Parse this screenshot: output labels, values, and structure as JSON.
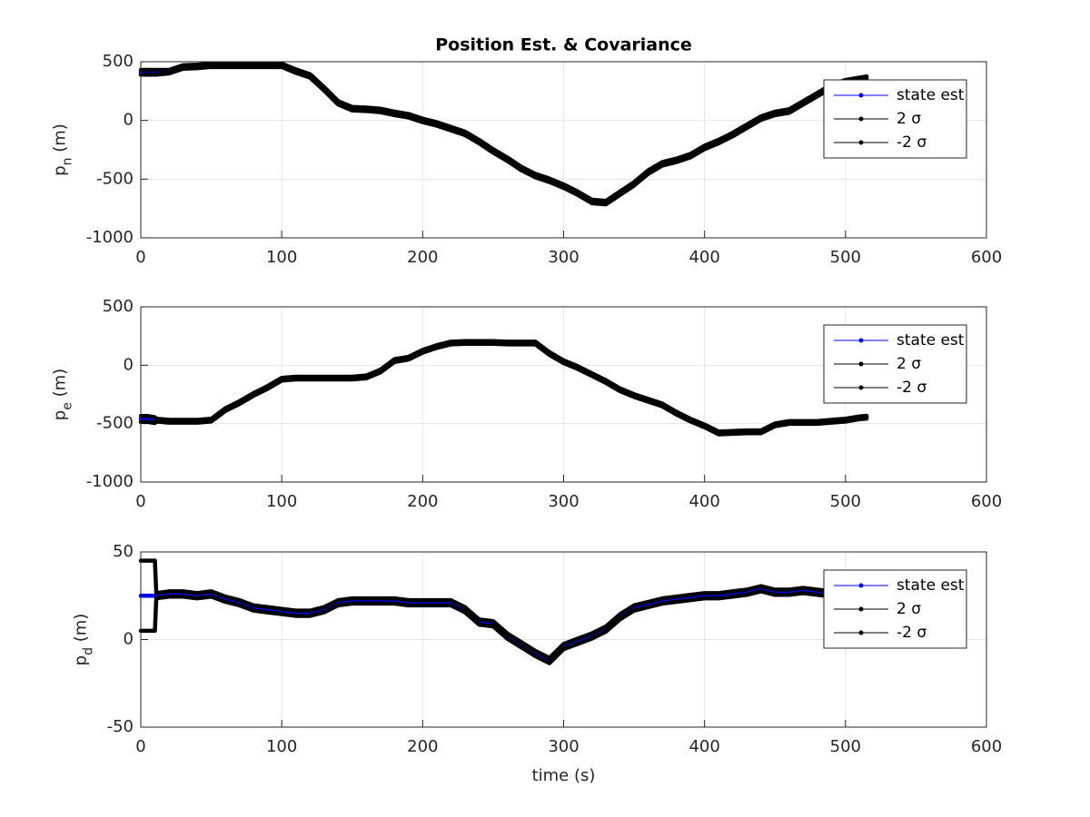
{
  "chart_data": [
    {
      "type": "line",
      "title": "Position Est. & Covariance",
      "ylabel": "p_n (m)",
      "x": [
        0,
        5,
        10,
        11,
        20,
        30,
        40,
        50,
        60,
        70,
        80,
        90,
        100,
        110,
        120,
        130,
        140,
        150,
        160,
        170,
        180,
        190,
        200,
        210,
        220,
        230,
        240,
        250,
        260,
        270,
        280,
        290,
        300,
        310,
        320,
        330,
        340,
        350,
        360,
        370,
        380,
        390,
        400,
        410,
        420,
        430,
        440,
        450,
        460,
        470,
        480,
        490,
        500,
        510,
        515
      ],
      "series": [
        {
          "name": "state est",
          "color": "#0000ff",
          "values": [
            410,
            410,
            410,
            410,
            415,
            455,
            460,
            470,
            470,
            470,
            470,
            470,
            470,
            420,
            380,
            270,
            150,
            100,
            95,
            85,
            60,
            40,
            0,
            -30,
            -70,
            -110,
            -180,
            -260,
            -330,
            -410,
            -470,
            -510,
            -560,
            -620,
            -690,
            -700,
            -620,
            -540,
            -440,
            -370,
            -340,
            -300,
            -230,
            -180,
            -120,
            -50,
            20,
            60,
            80,
            150,
            220,
            290,
            330,
            350,
            360
          ]
        },
        {
          "name": "2 σ",
          "color": "#000000",
          "values": [
            430,
            430,
            430,
            430,
            430,
            470,
            475,
            485,
            485,
            485,
            485,
            485,
            485,
            435,
            395,
            285,
            165,
            115,
            110,
            100,
            75,
            55,
            15,
            -15,
            -55,
            -95,
            -165,
            -245,
            -315,
            -395,
            -455,
            -495,
            -545,
            -605,
            -675,
            -685,
            -605,
            -525,
            -425,
            -355,
            -325,
            -285,
            -215,
            -165,
            -105,
            -35,
            35,
            75,
            95,
            165,
            235,
            305,
            345,
            365,
            375
          ]
        },
        {
          "name": "-2 σ",
          "color": "#000000",
          "values": [
            390,
            390,
            390,
            390,
            400,
            440,
            445,
            455,
            455,
            455,
            455,
            455,
            455,
            405,
            365,
            255,
            135,
            85,
            80,
            70,
            45,
            25,
            -15,
            -45,
            -85,
            -125,
            -195,
            -275,
            -345,
            -425,
            -485,
            -525,
            -575,
            -635,
            -705,
            -715,
            -635,
            -555,
            -455,
            -385,
            -355,
            -315,
            -245,
            -195,
            -135,
            -65,
            5,
            45,
            65,
            135,
            205,
            275,
            315,
            335,
            345
          ]
        }
      ],
      "xlim": [
        0,
        600
      ],
      "xticks": [
        0,
        100,
        200,
        300,
        400,
        500,
        600
      ],
      "ylim": [
        -1000,
        500
      ],
      "yticks": [
        -1000,
        -500,
        0,
        500
      ],
      "grid": true,
      "legend": "northeast"
    },
    {
      "type": "line",
      "ylabel": "p_e (m)",
      "x": [
        0,
        5,
        10,
        11,
        20,
        30,
        40,
        50,
        60,
        70,
        80,
        90,
        100,
        110,
        120,
        130,
        140,
        150,
        160,
        170,
        180,
        190,
        200,
        210,
        220,
        230,
        240,
        250,
        260,
        270,
        280,
        290,
        300,
        310,
        320,
        330,
        340,
        350,
        360,
        370,
        380,
        390,
        400,
        410,
        420,
        430,
        440,
        450,
        460,
        470,
        480,
        490,
        500,
        510,
        515
      ],
      "series": [
        {
          "name": "state est",
          "color": "#0000ff",
          "values": [
            -460,
            -460,
            -470,
            -470,
            -480,
            -480,
            -480,
            -470,
            -380,
            -320,
            -250,
            -190,
            -120,
            -110,
            -110,
            -110,
            -110,
            -110,
            -100,
            -50,
            40,
            60,
            120,
            160,
            190,
            195,
            195,
            195,
            190,
            190,
            190,
            100,
            30,
            -20,
            -80,
            -140,
            -210,
            -260,
            -300,
            -340,
            -410,
            -470,
            -520,
            -580,
            -575,
            -570,
            -570,
            -510,
            -490,
            -490,
            -490,
            -480,
            -470,
            -450,
            -445
          ]
        },
        {
          "name": "2 σ",
          "color": "#000000",
          "values": [
            -435,
            -435,
            -445,
            -458,
            -468,
            -468,
            -468,
            -458,
            -368,
            -308,
            -238,
            -178,
            -108,
            -98,
            -98,
            -98,
            -98,
            -98,
            -88,
            -38,
            52,
            72,
            132,
            172,
            202,
            207,
            207,
            207,
            202,
            202,
            202,
            112,
            42,
            -8,
            -68,
            -128,
            -198,
            -248,
            -288,
            -328,
            -398,
            -458,
            -508,
            -568,
            -563,
            -558,
            -558,
            -498,
            -478,
            -478,
            -478,
            -468,
            -458,
            -438,
            -433
          ]
        },
        {
          "name": "-2 σ",
          "color": "#000000",
          "values": [
            -485,
            -485,
            -495,
            -482,
            -492,
            -492,
            -492,
            -482,
            -392,
            -332,
            -262,
            -202,
            -132,
            -122,
            -122,
            -122,
            -122,
            -122,
            -112,
            -62,
            28,
            48,
            108,
            148,
            178,
            183,
            183,
            183,
            178,
            178,
            178,
            88,
            18,
            -32,
            -92,
            -152,
            -222,
            -272,
            -312,
            -352,
            -422,
            -482,
            -532,
            -592,
            -587,
            -582,
            -582,
            -522,
            -502,
            -502,
            -502,
            -492,
            -482,
            -462,
            -457
          ]
        }
      ],
      "xlim": [
        0,
        600
      ],
      "xticks": [
        0,
        100,
        200,
        300,
        400,
        500,
        600
      ],
      "ylim": [
        -1000,
        500
      ],
      "yticks": [
        -1000,
        -500,
        0,
        500
      ],
      "grid": true,
      "legend": "northeast"
    },
    {
      "type": "line",
      "ylabel": "p_d (m)",
      "xlabel": "time (s)",
      "x": [
        0,
        5,
        10,
        11,
        20,
        30,
        40,
        50,
        60,
        70,
        80,
        90,
        100,
        110,
        120,
        130,
        140,
        150,
        160,
        170,
        180,
        190,
        200,
        210,
        220,
        230,
        240,
        250,
        260,
        270,
        280,
        290,
        300,
        310,
        320,
        330,
        340,
        350,
        360,
        370,
        380,
        390,
        400,
        410,
        420,
        430,
        440,
        450,
        460,
        470,
        480,
        490,
        500,
        510,
        515
      ],
      "series": [
        {
          "name": "state est",
          "color": "#0000ff",
          "values": [
            25,
            25,
            25,
            25,
            26,
            26,
            25,
            26,
            23,
            21,
            18,
            17,
            16,
            15,
            15,
            17,
            21,
            22,
            22,
            22,
            22,
            21,
            21,
            21,
            21,
            17,
            10,
            9,
            2,
            -3,
            -8,
            -12,
            -4,
            -1,
            2,
            6,
            13,
            18,
            20,
            22,
            23,
            24,
            25,
            25,
            26,
            27,
            29,
            27,
            27,
            28,
            27,
            26,
            26,
            26,
            26
          ]
        },
        {
          "name": "2 σ",
          "color": "#000000",
          "values": [
            45,
            45,
            45,
            26.5,
            27.5,
            27.5,
            26.5,
            27.5,
            24.5,
            22.5,
            19.5,
            18.5,
            17.5,
            16.5,
            16.5,
            18.5,
            22.5,
            23.5,
            23.5,
            23.5,
            23.5,
            22.5,
            22.5,
            22.5,
            22.5,
            18.5,
            11.5,
            10.5,
            3.5,
            -1.5,
            -6.5,
            -10.5,
            -2.5,
            0.5,
            3.5,
            7.5,
            14.5,
            19.5,
            21.5,
            23.5,
            24.5,
            25.5,
            26.5,
            26.5,
            27.5,
            28.5,
            30.5,
            28.5,
            28.5,
            29.5,
            28.5,
            27.5,
            27.5,
            27.5,
            27.5
          ]
        },
        {
          "name": "-2 σ",
          "color": "#000000",
          "values": [
            5,
            5,
            5,
            23.5,
            24.5,
            24.5,
            23.5,
            24.5,
            21.5,
            19.5,
            16.5,
            15.5,
            14.5,
            13.5,
            13.5,
            15.5,
            19.5,
            20.5,
            20.5,
            20.5,
            20.5,
            19.5,
            19.5,
            19.5,
            19.5,
            15.5,
            8.5,
            7.5,
            0.5,
            -4.5,
            -9.5,
            -13.5,
            -5.5,
            -2.5,
            0.5,
            4.5,
            11.5,
            16.5,
            18.5,
            20.5,
            21.5,
            22.5,
            23.5,
            23.5,
            24.5,
            25.5,
            27.5,
            25.5,
            25.5,
            26.5,
            25.5,
            24.5,
            24.5,
            24.5,
            24.5
          ]
        }
      ],
      "xlim": [
        0,
        600
      ],
      "xticks": [
        0,
        100,
        200,
        300,
        400,
        500,
        600
      ],
      "ylim": [
        -50,
        50
      ],
      "yticks": [
        -50,
        0,
        50
      ],
      "grid": true,
      "legend": "northeast"
    }
  ]
}
